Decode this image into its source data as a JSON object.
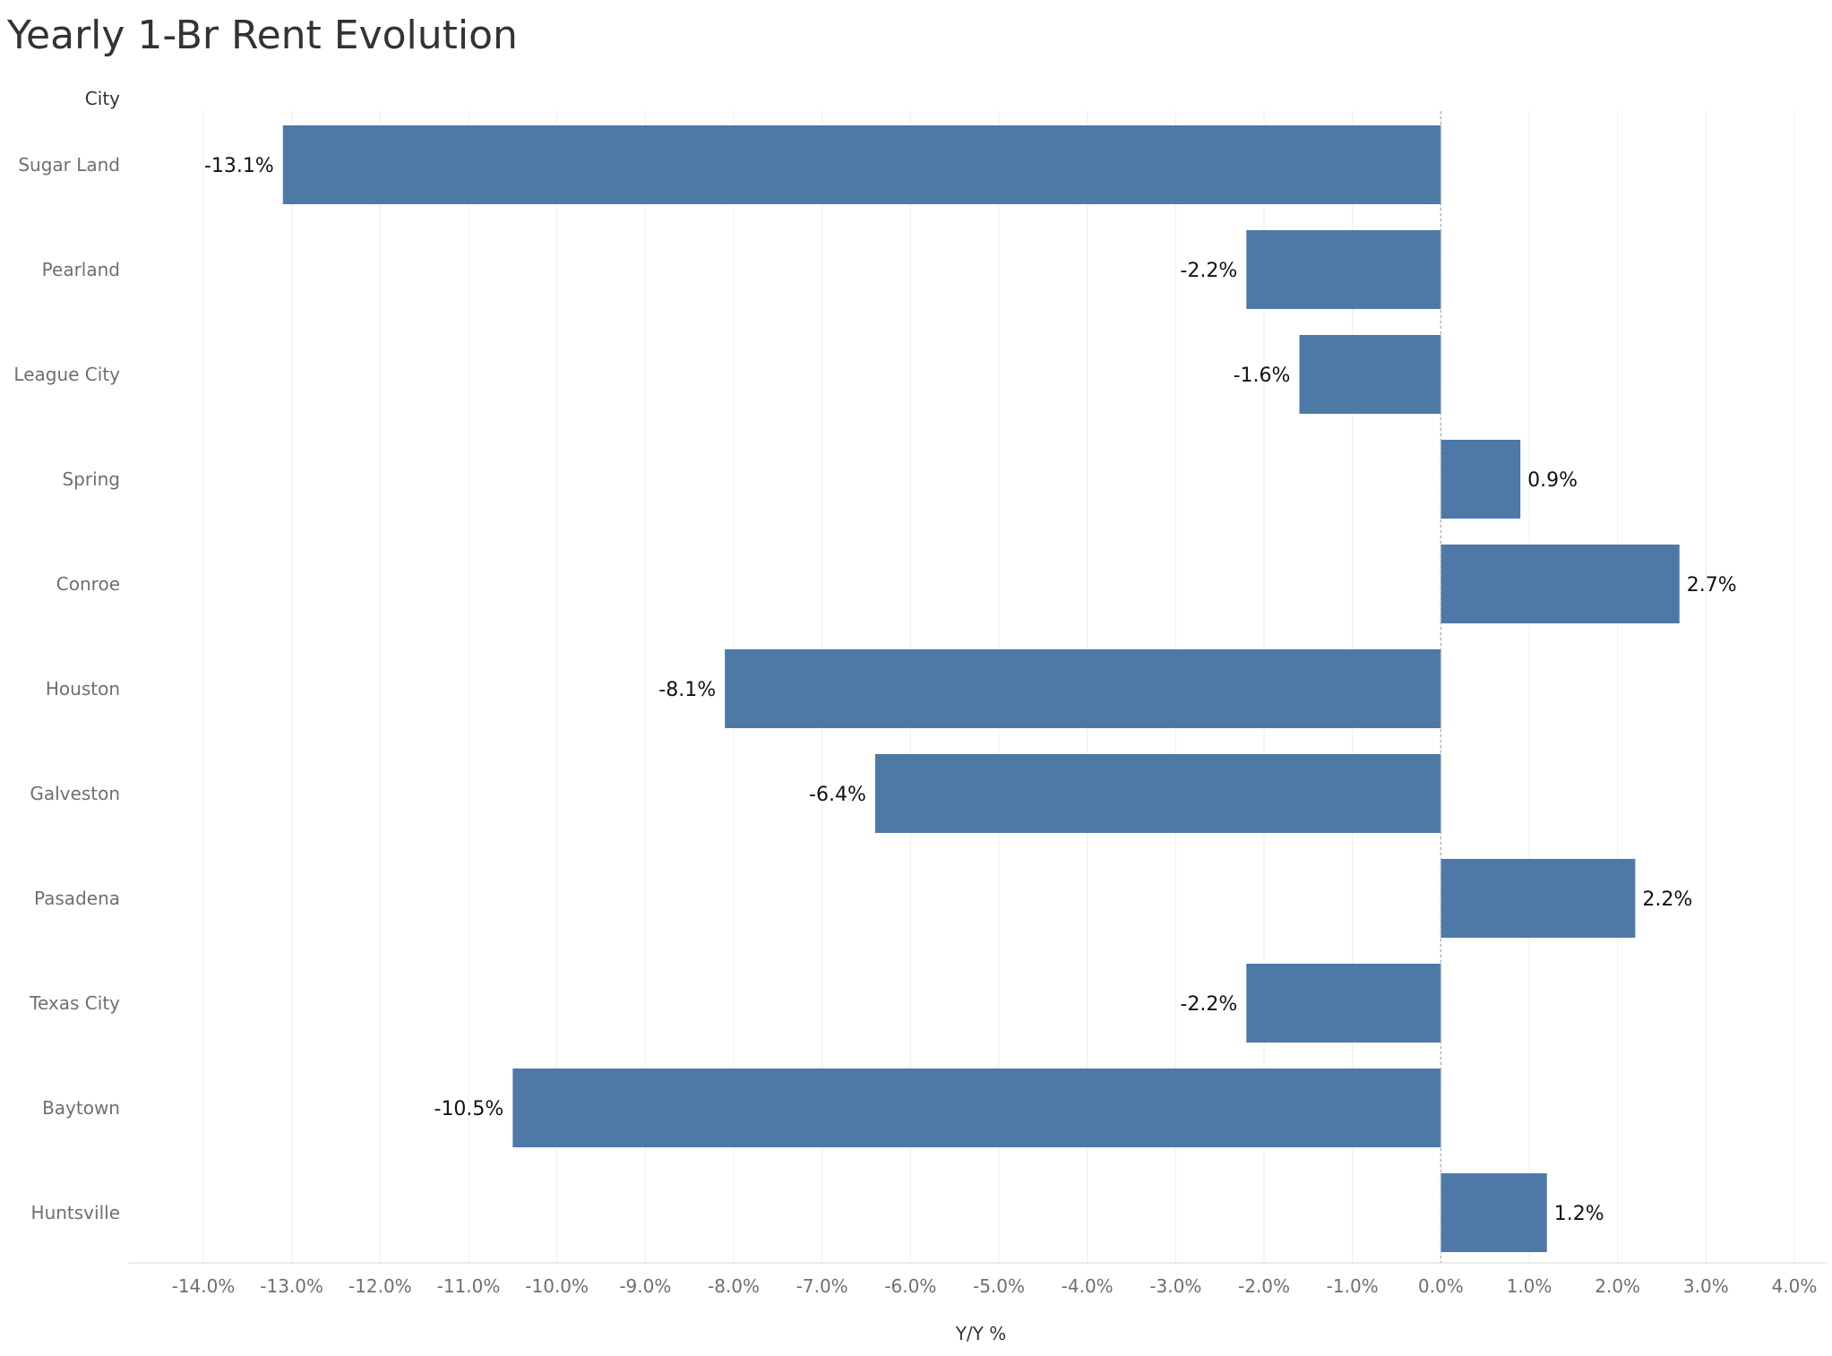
{
  "chart_data": {
    "type": "bar",
    "orientation": "horizontal",
    "title": "Yearly 1-Br Rent Evolution",
    "row_header": "City",
    "xlabel": "Y/Y %",
    "categories": [
      "Sugar Land",
      "Pearland",
      "League City",
      "Spring",
      "Conroe",
      "Houston",
      "Galveston",
      "Pasadena",
      "Texas City",
      "Baytown",
      "Huntsville"
    ],
    "values": [
      -13.1,
      -2.2,
      -1.6,
      0.9,
      2.7,
      -8.1,
      -6.4,
      2.2,
      -2.2,
      -10.5,
      1.2
    ],
    "data_labels": [
      "-13.1%",
      "-2.2%",
      "-1.6%",
      "0.9%",
      "2.7%",
      "-8.1%",
      "-6.4%",
      "2.2%",
      "-2.2%",
      "-10.5%",
      "1.2%"
    ],
    "xlim": [
      -14.0,
      4.0
    ],
    "x_ticks": [
      "-14.0%",
      "-13.0%",
      "-12.0%",
      "-11.0%",
      "-10.0%",
      "-9.0%",
      "-8.0%",
      "-7.0%",
      "-6.0%",
      "-5.0%",
      "-4.0%",
      "-3.0%",
      "-2.0%",
      "-1.0%",
      "0.0%",
      "1.0%",
      "2.0%",
      "3.0%",
      "4.0%"
    ],
    "grid": true,
    "bar_color": "#4e79a7",
    "gridline_color": "#ececec",
    "zero_line_color": "#b5b5b5"
  }
}
